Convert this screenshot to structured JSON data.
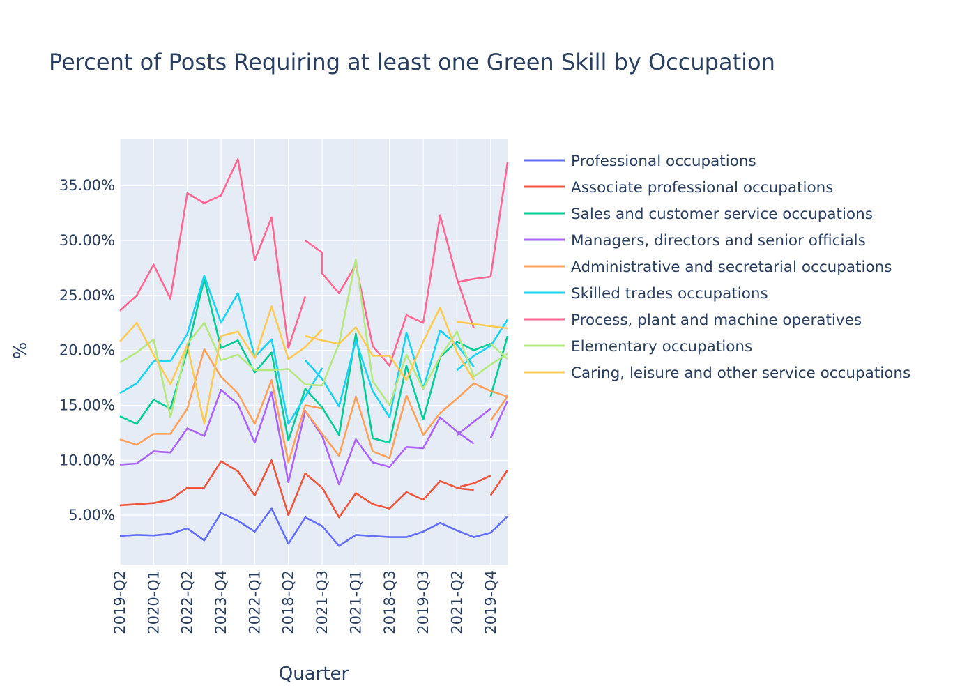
{
  "chart_data": {
    "type": "line",
    "title": "Percent of Posts Requiring at least one Green Skill by Occupation",
    "xlabel": "Quarter",
    "ylabel": "%",
    "ylim": [
      0.5,
      39.2
    ],
    "y_tick_values": [
      5,
      10,
      15,
      20,
      25,
      30,
      35
    ],
    "y_tick_labels": [
      "5.00%",
      "10.00%",
      "15.00%",
      "20.00%",
      "25.00%",
      "30.00%",
      "35.00%"
    ],
    "x_tick_labels": [
      "2019-Q2",
      "2020-Q1",
      "2022-Q2",
      "2023-Q4",
      "2022-Q1",
      "2018-Q2",
      "2021-Q3",
      "2021-Q1",
      "2018-Q3",
      "2019-Q3",
      "2021-Q2",
      "2019-Q4"
    ],
    "x_tick_positions": [
      0,
      2,
      4,
      6,
      8,
      10,
      12,
      14,
      16,
      18,
      20,
      22
    ],
    "xlim": [
      0,
      23
    ],
    "legend_position": "right",
    "grid": true,
    "plot_background": "#e5ecf6",
    "series": [
      {
        "name": "Professional occupations",
        "color": "#636efa",
        "points": [
          [
            0,
            3.1
          ],
          [
            1,
            3.2
          ],
          [
            2,
            3.15
          ],
          [
            3,
            3.3
          ],
          [
            4,
            3.8
          ],
          [
            5,
            2.7
          ],
          [
            6,
            5.2
          ],
          [
            7,
            4.5
          ],
          [
            8,
            3.5
          ],
          [
            9,
            5.6
          ],
          [
            10,
            2.4
          ],
          [
            11,
            4.8
          ],
          [
            12,
            4.0
          ],
          [
            13,
            2.2
          ],
          [
            14,
            3.2
          ],
          [
            15,
            3.1
          ],
          [
            16,
            3.0
          ],
          [
            17,
            3.0
          ],
          [
            18,
            3.5
          ],
          [
            19,
            4.3
          ],
          [
            20,
            3.6
          ],
          [
            21,
            3.0
          ],
          [
            22,
            3.4
          ],
          [
            23,
            4.9
          ]
        ]
      },
      {
        "name": "Associate professional occupations",
        "color": "#ef553b",
        "points": [
          [
            0,
            5.9
          ],
          [
            1,
            6.0
          ],
          [
            2,
            6.1
          ],
          [
            3,
            6.4
          ],
          [
            4,
            7.5
          ],
          [
            5,
            7.5
          ],
          [
            6,
            9.9
          ],
          [
            7,
            9.0
          ],
          [
            8,
            6.8
          ],
          [
            9,
            10.0
          ],
          [
            10,
            5.0
          ],
          [
            11,
            8.8
          ],
          [
            12,
            7.5
          ],
          [
            13,
            4.8
          ],
          [
            14,
            7.0
          ],
          [
            15,
            6.0
          ],
          [
            16,
            5.6
          ],
          [
            17,
            7.1
          ],
          [
            18,
            6.4
          ],
          [
            19,
            8.1
          ],
          [
            20,
            7.5
          ],
          [
            20.3,
            7.4
          ],
          [
            21,
            7.3
          ],
          [
            null,
            null
          ],
          [
            20.2,
            7.6
          ],
          [
            21,
            7.9
          ],
          [
            22,
            8.6
          ],
          [
            null,
            null
          ],
          [
            22,
            6.8
          ],
          [
            23,
            9.1
          ]
        ]
      },
      {
        "name": "Sales and customer service occupations",
        "color": "#00cc96",
        "points": [
          [
            0,
            14.0
          ],
          [
            1,
            13.3
          ],
          [
            2,
            15.5
          ],
          [
            3,
            14.7
          ],
          [
            4,
            20.0
          ],
          [
            5,
            26.5
          ],
          [
            6,
            20.2
          ],
          [
            7,
            20.9
          ],
          [
            8,
            18.0
          ],
          [
            9,
            19.8
          ],
          [
            10,
            11.8
          ],
          [
            11,
            16.5
          ],
          [
            12,
            14.8
          ],
          [
            13,
            12.3
          ],
          [
            14,
            21.5
          ],
          [
            15,
            12.0
          ],
          [
            16,
            11.6
          ],
          [
            17,
            18.6
          ],
          [
            18,
            13.7
          ],
          [
            19,
            19.4
          ],
          [
            20,
            20.8
          ],
          [
            21,
            20.0
          ],
          [
            22,
            20.6
          ],
          [
            null,
            null
          ],
          [
            22,
            15.8
          ],
          [
            23,
            21.3
          ]
        ]
      },
      {
        "name": "Managers, directors and senior officials",
        "color": "#ab63fa",
        "points": [
          [
            0,
            9.6
          ],
          [
            1,
            9.7
          ],
          [
            2,
            10.8
          ],
          [
            3,
            10.7
          ],
          [
            4,
            12.9
          ],
          [
            5,
            12.2
          ],
          [
            6,
            16.4
          ],
          [
            7,
            15.1
          ],
          [
            8,
            11.6
          ],
          [
            9,
            16.2
          ],
          [
            10,
            8.0
          ],
          [
            11,
            14.5
          ],
          [
            12,
            12.2
          ],
          [
            13,
            7.8
          ],
          [
            14,
            11.9
          ],
          [
            15,
            9.8
          ],
          [
            16,
            9.4
          ],
          [
            17,
            11.2
          ],
          [
            18,
            11.1
          ],
          [
            19,
            13.9
          ],
          [
            20,
            12.6
          ],
          [
            21,
            11.5
          ],
          [
            null,
            null
          ],
          [
            20,
            12.3
          ],
          [
            21,
            13.5
          ],
          [
            22,
            14.7
          ],
          [
            null,
            null
          ],
          [
            22,
            12.0
          ],
          [
            23,
            15.4
          ]
        ]
      },
      {
        "name": "Administrative and secretarial occupations",
        "color": "#ffa15a",
        "points": [
          [
            0,
            11.9
          ],
          [
            1,
            11.4
          ],
          [
            2,
            12.4
          ],
          [
            3,
            12.4
          ],
          [
            4,
            14.7
          ],
          [
            5,
            20.1
          ],
          [
            6,
            17.6
          ],
          [
            7,
            16.1
          ],
          [
            8,
            13.3
          ],
          [
            9,
            17.3
          ],
          [
            10,
            9.8
          ],
          [
            11,
            15.0
          ],
          [
            12,
            14.7
          ],
          [
            null,
            null
          ],
          [
            11,
            14.5
          ],
          [
            12,
            12.4
          ],
          [
            13,
            10.4
          ],
          [
            14,
            15.8
          ],
          [
            15,
            10.8
          ],
          [
            16,
            10.2
          ],
          [
            17,
            15.9
          ],
          [
            18,
            12.3
          ],
          [
            19,
            14.3
          ],
          [
            20,
            15.6
          ],
          [
            21,
            17.0
          ],
          [
            22,
            16.3
          ],
          [
            23,
            15.8
          ],
          [
            null,
            null
          ],
          [
            22,
            13.6
          ],
          [
            23,
            15.8
          ]
        ]
      },
      {
        "name": "Skilled trades occupations",
        "color": "#19d3f3",
        "points": [
          [
            0,
            16.1
          ],
          [
            1,
            17.0
          ],
          [
            2,
            19.0
          ],
          [
            3,
            19.0
          ],
          [
            4,
            21.5
          ],
          [
            5,
            26.8
          ],
          [
            6,
            22.5
          ],
          [
            7,
            25.2
          ],
          [
            8,
            19.4
          ],
          [
            9,
            21.0
          ],
          [
            10,
            13.3
          ],
          [
            11,
            15.8
          ],
          [
            12,
            18.4
          ],
          [
            null,
            null
          ],
          [
            11,
            19.1
          ],
          [
            12,
            17.4
          ],
          [
            13,
            14.9
          ],
          [
            14,
            20.9
          ],
          [
            15,
            16.3
          ],
          [
            16,
            13.9
          ],
          [
            17,
            21.6
          ],
          [
            18,
            16.5
          ],
          [
            19,
            21.8
          ],
          [
            20,
            20.5
          ],
          [
            21,
            18.5
          ],
          [
            null,
            null
          ],
          [
            20,
            18.2
          ],
          [
            21,
            19.5
          ],
          [
            22,
            20.4
          ],
          [
            23,
            22.8
          ]
        ]
      },
      {
        "name": "Process, plant and machine operatives",
        "color": "#ff6692",
        "points": [
          [
            0,
            23.6
          ],
          [
            1,
            25.0
          ],
          [
            2,
            27.8
          ],
          [
            3,
            24.7
          ],
          [
            4,
            34.3
          ],
          [
            5,
            33.4
          ],
          [
            6,
            34.1
          ],
          [
            7,
            37.4
          ],
          [
            8,
            28.2
          ],
          [
            9,
            32.1
          ],
          [
            10,
            20.2
          ],
          [
            11,
            24.9
          ],
          [
            null,
            null
          ],
          [
            11,
            30.0
          ],
          [
            12,
            28.9
          ],
          [
            12,
            27.0
          ],
          [
            13,
            25.2
          ],
          [
            14,
            27.8
          ],
          [
            15,
            20.4
          ],
          [
            16,
            18.6
          ],
          [
            17,
            23.2
          ],
          [
            18,
            22.5
          ],
          [
            19,
            32.3
          ],
          [
            20,
            26.5
          ],
          [
            21,
            22.0
          ],
          [
            null,
            null
          ],
          [
            20,
            26.2
          ],
          [
            21,
            26.5
          ],
          [
            22,
            26.7
          ],
          [
            23,
            37.1
          ]
        ]
      },
      {
        "name": "Elementary occupations",
        "color": "#b6e880",
        "points": [
          [
            0,
            18.9
          ],
          [
            1,
            19.8
          ],
          [
            2,
            21.0
          ],
          [
            3,
            13.9
          ],
          [
            4,
            20.6
          ],
          [
            5,
            22.5
          ],
          [
            6,
            19.1
          ],
          [
            7,
            19.6
          ],
          [
            8,
            18.2
          ],
          [
            9,
            18.2
          ],
          [
            10,
            18.3
          ],
          [
            11,
            16.9
          ],
          [
            12,
            16.8
          ],
          [
            13,
            20.6
          ],
          [
            14,
            28.3
          ],
          [
            15,
            17.2
          ],
          [
            16,
            15.0
          ],
          [
            17,
            19.6
          ],
          [
            18,
            16.5
          ],
          [
            19,
            19.4
          ],
          [
            20,
            21.7
          ],
          [
            21,
            17.6
          ],
          [
            22,
            18.7
          ],
          [
            23,
            19.7
          ],
          [
            null,
            null
          ],
          [
            22,
            20.6
          ],
          [
            23,
            19.2
          ]
        ]
      },
      {
        "name": "Caring, leisure and other service occupations",
        "color": "#fecb52",
        "points": [
          [
            0,
            20.8
          ],
          [
            1,
            22.5
          ],
          [
            2,
            19.6
          ],
          [
            3,
            16.9
          ],
          [
            4,
            20.5
          ],
          [
            5,
            13.3
          ],
          [
            6,
            21.3
          ],
          [
            7,
            21.7
          ],
          [
            8,
            19.3
          ],
          [
            9,
            24.0
          ],
          [
            10,
            19.2
          ],
          [
            11,
            20.3
          ],
          [
            12,
            21.9
          ],
          [
            null,
            null
          ],
          [
            11,
            21.3
          ],
          [
            12,
            20.9
          ],
          [
            13,
            20.6
          ],
          [
            14,
            22.1
          ],
          [
            15,
            19.5
          ],
          [
            16,
            19.5
          ],
          [
            17,
            17.3
          ],
          [
            18,
            20.8
          ],
          [
            19,
            23.9
          ],
          [
            20,
            19.8
          ],
          [
            21,
            17.3
          ],
          [
            null,
            null
          ],
          [
            20,
            22.6
          ],
          [
            21,
            22.4
          ],
          [
            22,
            22.2
          ],
          [
            23,
            22.0
          ]
        ]
      }
    ]
  }
}
